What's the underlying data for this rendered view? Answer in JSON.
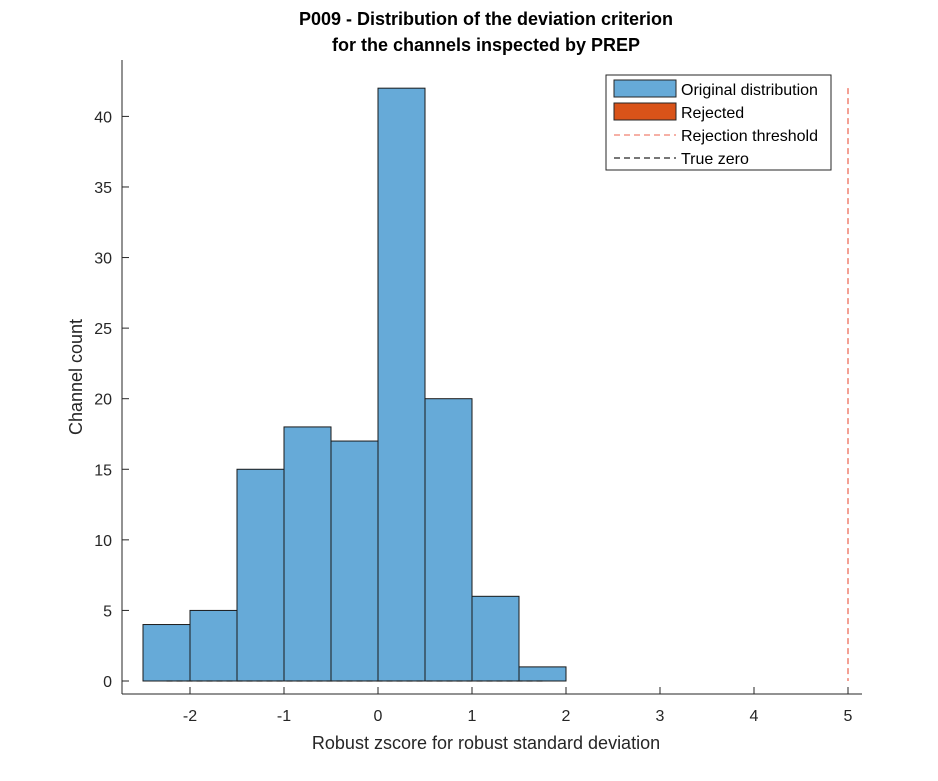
{
  "chart_data": {
    "type": "bar",
    "title": "P009 - Distribution of the deviation criterion",
    "subtitle": "for the channels inspected by PREP",
    "xlabel": "Robust zscore for robust standard deviation",
    "ylabel": "Channel count",
    "xlim": [
      -2.5,
      5
    ],
    "ylim": [
      0,
      43
    ],
    "xticks": [
      "-2",
      "-1",
      "0",
      "1",
      "2",
      "3",
      "4",
      "5"
    ],
    "yticks": [
      "0",
      "5",
      "10",
      "15",
      "20",
      "25",
      "30",
      "35",
      "40"
    ],
    "bin_edges": [
      -2.5,
      -2,
      -1.5,
      -1,
      -0.5,
      0,
      0.5,
      1,
      1.5,
      2
    ],
    "series": [
      {
        "name": "Original distribution",
        "values": [
          4,
          5,
          15,
          18,
          17,
          42,
          20,
          6,
          1
        ],
        "color": "#66aad8"
      },
      {
        "name": "Rejected",
        "values": [
          0,
          0,
          0,
          0,
          0,
          0,
          0,
          0,
          0
        ],
        "color": "#d95319"
      }
    ],
    "rejection_threshold": {
      "name": "Rejection threshold",
      "x": 5,
      "y_range": [
        0,
        42
      ],
      "color": "#f08070",
      "style": "dashed"
    },
    "true_zero": {
      "name": "True zero",
      "x_range": [
        -2.25,
        1.75
      ],
      "y": 0,
      "color": "#262626",
      "style": "dashed"
    },
    "legend": {
      "position": "top-right"
    },
    "grid": false
  }
}
